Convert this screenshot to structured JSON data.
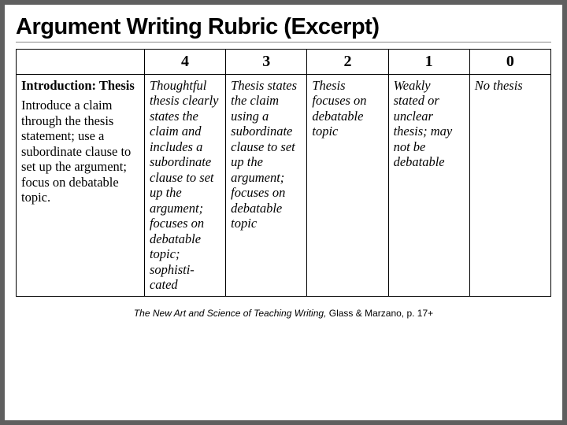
{
  "title": "Argument Writing Rubric (Excerpt)",
  "scores": [
    "4",
    "3",
    "2",
    "1",
    "0"
  ],
  "criterion": {
    "label": "Introduction: Thesis",
    "desc": "Introduce a claim through the thesis statement; use a subordinate clause to set up the argument; focus on debatable topic."
  },
  "cells": {
    "s4": "Thoughtful thesis clearly states the claim and includes a subordinate clause to set up the argument; focuses on debatable topic; sophisti-cated",
    "s3": "Thesis states the claim using a subordinate clause to set up the argument; focuses on debatable topic",
    "s2": "Thesis focuses on debatable topic",
    "s1": "Weakly stated or unclear thesis; may not be debatable",
    "s0": "No thesis"
  },
  "citation": {
    "book": "The New Art and Science of Teaching Writing,",
    "rest": " Glass & Marzano, p. 17+"
  },
  "style": {
    "title_fontsize": 29,
    "header_fontsize": 20,
    "cell_fontsize": 16.5,
    "cell_font": "Times New Roman",
    "border_color": "#000000",
    "background": "#ffffff",
    "page_background": "#5f5f5f"
  }
}
